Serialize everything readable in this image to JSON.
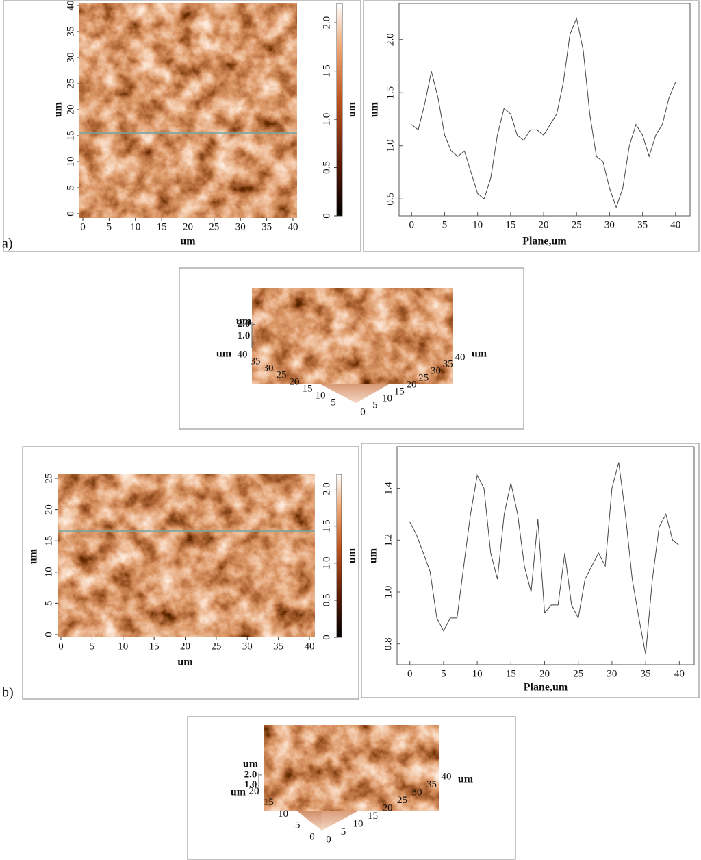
{
  "panel_labels": [
    "a)",
    "b)"
  ],
  "chart_data": [
    {
      "type": "image",
      "xlabel": "um",
      "ylabel": "um",
      "xlim": [
        0,
        40
      ],
      "ylim": [
        0,
        40
      ],
      "xticks": [
        0,
        5,
        10,
        15,
        20,
        25,
        30,
        35,
        40
      ],
      "yticks": [
        0,
        5,
        10,
        15,
        20,
        25,
        30,
        35,
        40
      ],
      "colorbar": {
        "label": "um",
        "lim": [
          0,
          2.2
        ],
        "ticks": [
          0,
          0.5,
          {
            "value": 1,
            "label": "1.0"
          },
          1.5,
          {
            "value": 2,
            "label": "2.0"
          }
        ]
      }
    },
    {
      "type": "line",
      "xlabel": "Plane,um",
      "ylabel": "um",
      "xlim": [
        -1.9,
        42.2
      ],
      "ylim": [
        0.34,
        2.34
      ],
      "xticks": [
        0,
        5,
        10,
        15,
        20,
        25,
        30,
        35,
        40
      ],
      "yticks": [
        0.5,
        {
          "value": 1,
          "label": "1.0"
        },
        1.5,
        {
          "value": 2,
          "label": "2.0"
        }
      ],
      "color": "#444444",
      "x": [
        0,
        1,
        2,
        3,
        4,
        5,
        6,
        7,
        8,
        9,
        10,
        11,
        12,
        13,
        14,
        15,
        16,
        17,
        18,
        19,
        20,
        21,
        22,
        23,
        24,
        25,
        26,
        27,
        28,
        29,
        30,
        31,
        32,
        33,
        34,
        35,
        36,
        37,
        38,
        39,
        40
      ],
      "values": [
        1.2,
        1.15,
        1.4,
        1.7,
        1.45,
        1.1,
        0.95,
        0.9,
        0.95,
        0.75,
        0.55,
        0.5,
        0.7,
        1.1,
        1.35,
        1.3,
        1.1,
        1.05,
        1.15,
        1.15,
        1.1,
        1.2,
        1.3,
        1.6,
        2.05,
        2.2,
        1.9,
        1.3,
        0.9,
        0.85,
        0.6,
        0.42,
        0.6,
        1.0,
        1.2,
        1.1,
        0.9,
        1.1,
        1.2,
        1.45,
        1.6
      ]
    },
    {
      "type": "surface3d",
      "zlabel": "um",
      "zlim": [
        0,
        2.2
      ],
      "zticks": [
        {
          "value": 1,
          "label": "1.0"
        },
        {
          "value": 2,
          "label": "2.0"
        }
      ],
      "ylabel": "um",
      "ylim": [
        0,
        40
      ],
      "yticks": [
        5,
        10,
        15,
        20,
        25,
        30,
        35,
        40
      ],
      "xlabel": "um",
      "xlim": [
        0,
        40
      ],
      "xticks": [
        0,
        5,
        10,
        15,
        20,
        25,
        30,
        35,
        40
      ]
    },
    {
      "type": "image",
      "xlabel": "um",
      "ylabel": "um",
      "xlim": [
        0,
        40
      ],
      "ylim": [
        0,
        25
      ],
      "xticks": [
        0,
        5,
        10,
        15,
        20,
        25,
        30,
        35,
        40
      ],
      "yticks": [
        0,
        5,
        10,
        15,
        20,
        25
      ],
      "colorbar": {
        "label": "um",
        "lim": [
          0,
          2.2
        ],
        "ticks": [
          0,
          0.5,
          {
            "value": 1,
            "label": "1.0"
          },
          1.5,
          {
            "value": 2,
            "label": "2.0"
          }
        ]
      }
    },
    {
      "type": "line",
      "xlabel": "Plane,um",
      "ylabel": "um",
      "xlim": [
        -1.9,
        42.2
      ],
      "ylim": [
        0.72,
        1.56
      ],
      "xticks": [
        0,
        5,
        10,
        15,
        20,
        25,
        30,
        35,
        40
      ],
      "yticks": [
        0.8,
        {
          "value": 1,
          "label": "1.0"
        },
        1.2,
        1.4
      ],
      "color": "#444444",
      "x": [
        0,
        1,
        2,
        3,
        4,
        5,
        6,
        7,
        8,
        9,
        10,
        11,
        12,
        13,
        14,
        15,
        16,
        17,
        18,
        19,
        20,
        21,
        22,
        23,
        24,
        25,
        26,
        27,
        28,
        29,
        30,
        31,
        32,
        33,
        34,
        35,
        36,
        37,
        38,
        39,
        40
      ],
      "values": [
        1.27,
        1.22,
        1.15,
        1.08,
        0.9,
        0.85,
        0.9,
        0.9,
        1.1,
        1.3,
        1.45,
        1.4,
        1.15,
        1.05,
        1.3,
        1.42,
        1.3,
        1.1,
        1.0,
        1.28,
        0.92,
        0.95,
        0.95,
        1.15,
        0.95,
        0.9,
        1.05,
        1.1,
        1.15,
        1.1,
        1.4,
        1.5,
        1.3,
        1.05,
        0.9,
        0.76,
        1.05,
        1.25,
        1.3,
        1.2,
        1.18
      ]
    },
    {
      "type": "surface3d",
      "zlabel": "um",
      "zlim": [
        0,
        2.2
      ],
      "zticks": [
        {
          "value": 1,
          "label": "1.0"
        },
        {
          "value": 2,
          "label": "2.0"
        }
      ],
      "ylabel": "um",
      "ylim": [
        0,
        20
      ],
      "yticks": [
        0,
        5,
        10,
        15,
        20
      ],
      "xlabel": "um",
      "xlim": [
        0,
        40
      ],
      "xticks": [
        0,
        5,
        10,
        15,
        20,
        25,
        30,
        35,
        40
      ]
    }
  ]
}
